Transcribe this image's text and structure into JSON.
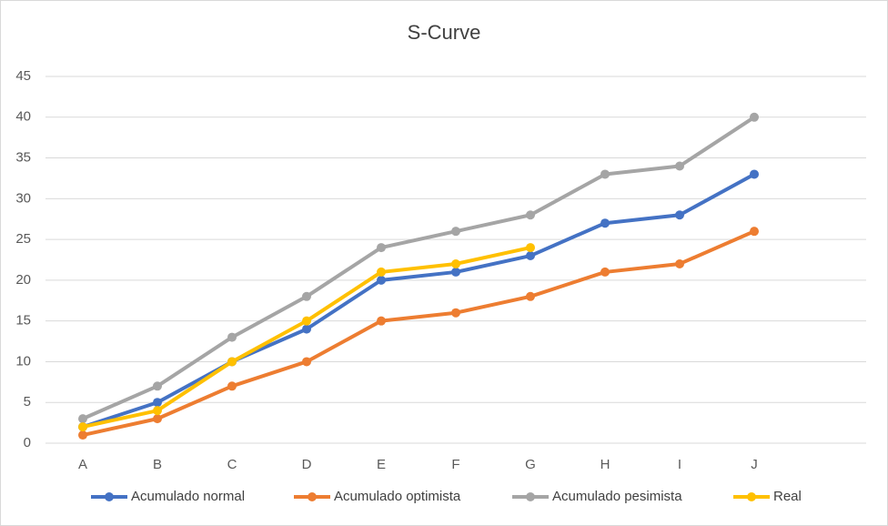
{
  "chart_data": {
    "type": "line",
    "title": "S-Curve",
    "categories": [
      "A",
      "B",
      "C",
      "D",
      "E",
      "F",
      "G",
      "H",
      "I",
      "J",
      null
    ],
    "series": [
      {
        "name": "Acumulado normal",
        "color": "#4472c4",
        "values": [
          2,
          5,
          10,
          14,
          20,
          21,
          23,
          27,
          28,
          33,
          null
        ]
      },
      {
        "name": "Acumulado optimista",
        "color": "#ed7d31",
        "values": [
          1,
          3,
          7,
          10,
          15,
          16,
          18,
          21,
          22,
          26,
          null
        ]
      },
      {
        "name": "Acumulado pesimista",
        "color": "#a5a5a5",
        "values": [
          3,
          7,
          13,
          18,
          24,
          26,
          28,
          33,
          34,
          40,
          null
        ]
      },
      {
        "name": "Real",
        "color": "#ffc000",
        "values": [
          2,
          4,
          10,
          15,
          21,
          22,
          24,
          null,
          null,
          null,
          null
        ]
      }
    ],
    "ylim": [
      0,
      45
    ],
    "yticks": [
      0,
      5,
      10,
      15,
      20,
      25,
      30,
      35,
      40,
      45
    ],
    "grid": true,
    "legend": "bottom"
  }
}
